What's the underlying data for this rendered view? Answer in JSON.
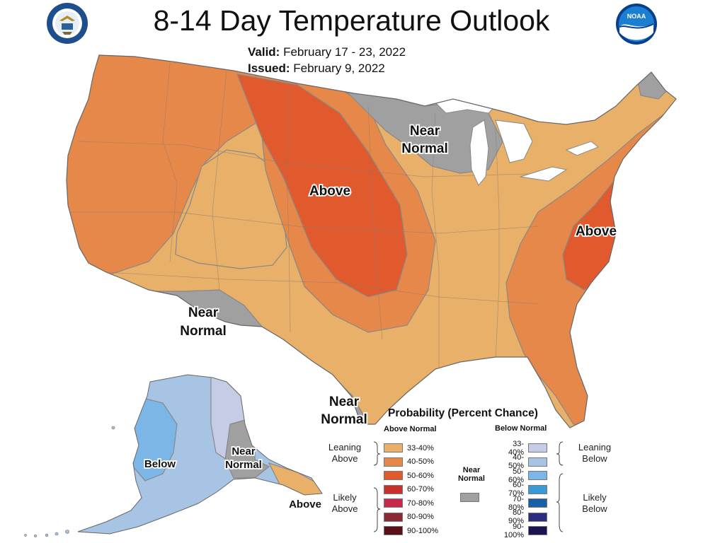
{
  "header": {
    "title": "8-14 Day Temperature Outlook",
    "valid_label": "Valid:",
    "valid_value": "February 17 - 23, 2022",
    "issued_label": "Issued:",
    "issued_value": "February 9, 2022"
  },
  "logos": {
    "left": "department-of-commerce-seal",
    "right": "noaa-logo"
  },
  "map_labels": {
    "above_central": "Above",
    "above_east": "Above",
    "near_normal_north_1": "Near",
    "near_normal_north_2": "Normal",
    "near_normal_sw_1": "Near",
    "near_normal_sw_2": "Normal",
    "near_normal_tx_1": "Near",
    "near_normal_tx_2": "Normal",
    "below_ak": "Below",
    "near_normal_ak_1": "Near",
    "near_normal_ak_2": "Normal",
    "above_ak": "Above"
  },
  "legend": {
    "title": "Probability (Percent Chance)",
    "above_header": "Above Normal",
    "below_header": "Below Normal",
    "near_normal_1": "Near",
    "near_normal_2": "Normal",
    "leaning_above_1": "Leaning",
    "leaning_above_2": "Above",
    "likely_above_1": "Likely",
    "likely_above_2": "Above",
    "leaning_below_1": "Leaning",
    "leaning_below_2": "Below",
    "likely_below_1": "Likely",
    "likely_below_2": "Below",
    "above_rows": [
      {
        "label": "33-40%",
        "color": "#e8b068"
      },
      {
        "label": "40-50%",
        "color": "#e6884a"
      },
      {
        "label": "50-60%",
        "color": "#e05a2e"
      },
      {
        "label": "60-70%",
        "color": "#c8302c"
      },
      {
        "label": "70-80%",
        "color": "#c8284c"
      },
      {
        "label": "80-90%",
        "color": "#8b2a34"
      },
      {
        "label": "90-100%",
        "color": "#5a1018"
      }
    ],
    "below_rows": [
      {
        "label": "33-40%",
        "color": "#c4cce6"
      },
      {
        "label": "40-50%",
        "color": "#a8c4e4"
      },
      {
        "label": "50-60%",
        "color": "#7cb6e6"
      },
      {
        "label": "60-70%",
        "color": "#3a9ad8"
      },
      {
        "label": "70-80%",
        "color": "#1660a8"
      },
      {
        "label": "80-90%",
        "color": "#2c2c80"
      },
      {
        "label": "90-100%",
        "color": "#1a1450"
      }
    ],
    "near_normal_color": "#a0a0a0"
  },
  "colors": {
    "above_33_40": "#e8b068",
    "above_40_50": "#e6884a",
    "above_50_60": "#e05a2e",
    "near_normal": "#a0a0a0",
    "below_33_40": "#c4cce6",
    "below_40_50": "#a8c4e4",
    "below_50_60": "#7cb6e6"
  }
}
